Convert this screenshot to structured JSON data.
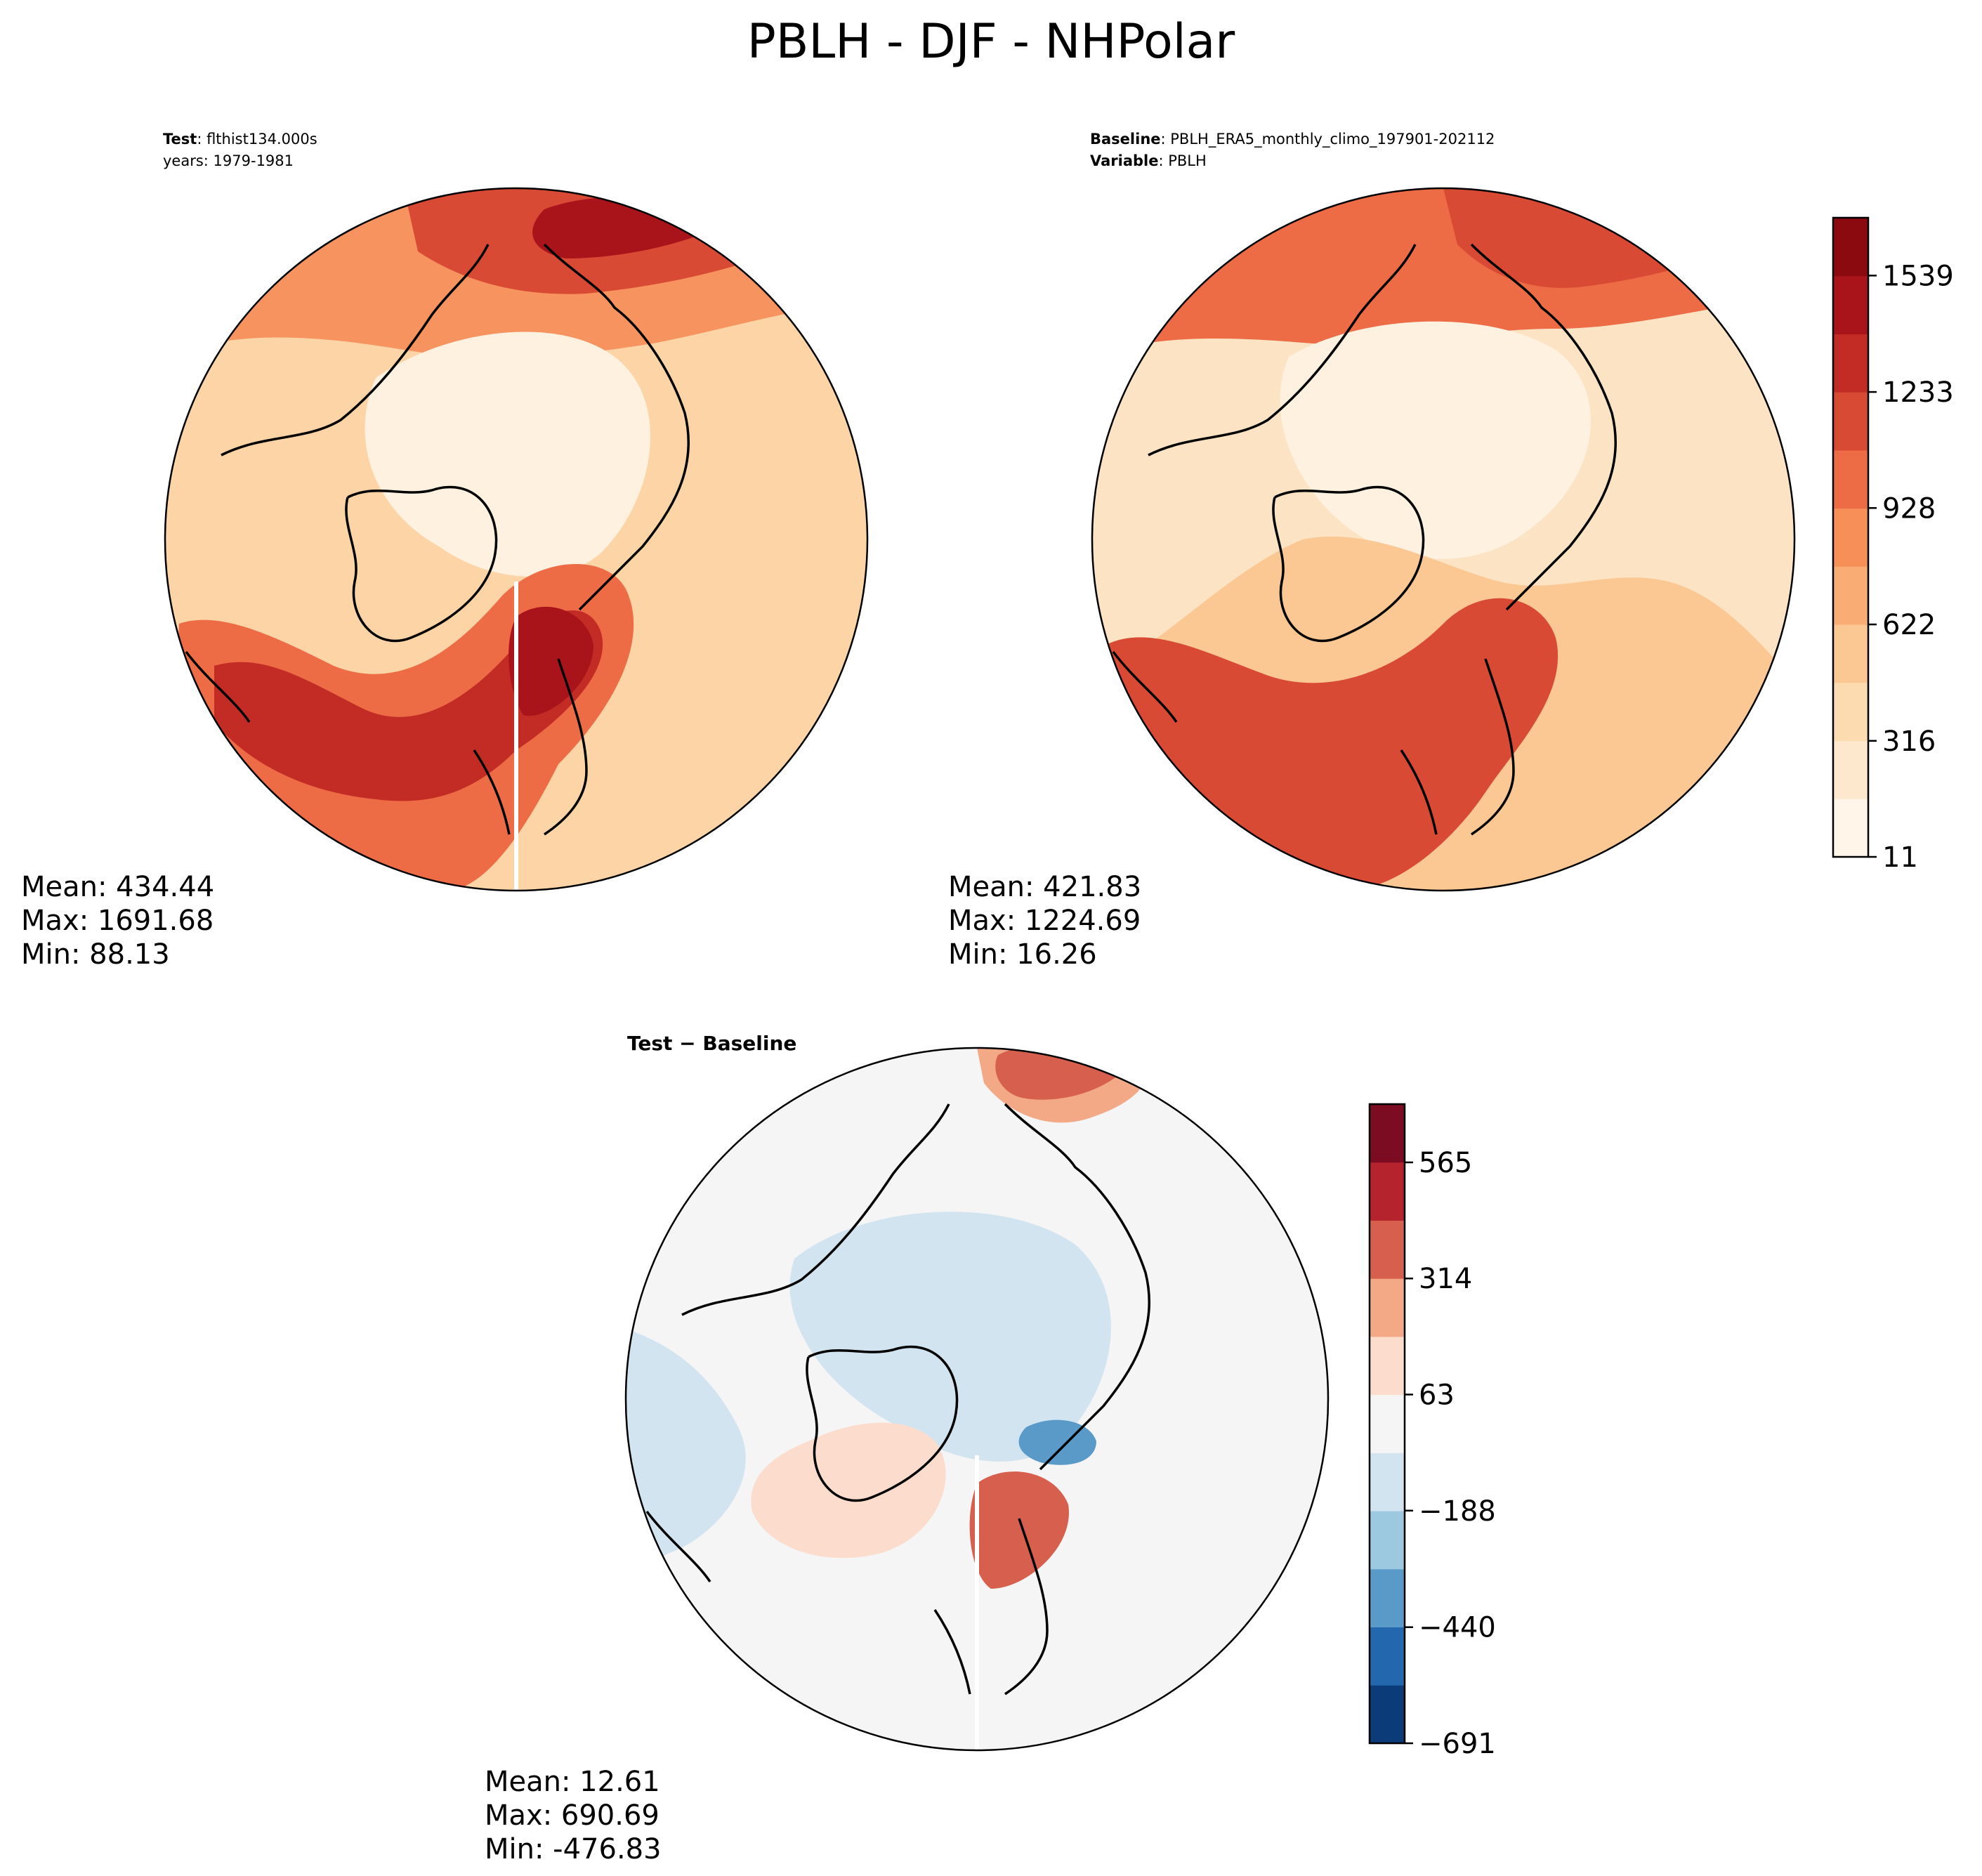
{
  "figure": {
    "title": "PBLH - DJF - NHPolar"
  },
  "panels": {
    "test": {
      "header": [
        {
          "bold": "Test",
          "rest": ": flthist134.000s"
        },
        {
          "bold": "",
          "rest": "years: 1979-1981"
        }
      ],
      "stats": [
        "Mean: 434.44",
        "Max: 1691.68",
        "Min: 88.13"
      ]
    },
    "baseline": {
      "header": [
        {
          "bold": "Baseline",
          "rest": ": PBLH_ERA5_monthly_climo_197901-202112"
        },
        {
          "bold": "Variable",
          "rest": ": PBLH"
        }
      ],
      "stats": [
        "Mean: 421.83",
        "Max: 1224.69",
        "Min: 16.26"
      ]
    },
    "diff": {
      "header": [
        {
          "bold": "Test − Baseline",
          "rest": ""
        }
      ],
      "stats": [
        "Mean: 12.61",
        "Max: 690.69",
        "Min: -476.83"
      ]
    }
  },
  "chart_data": [
    {
      "type": "heatmap",
      "panel": "Test",
      "projection": "north-polar-stereographic",
      "field": "PBLH",
      "mean": 434.44,
      "max": 1691.68,
      "min": 88.13
    },
    {
      "type": "heatmap",
      "panel": "Baseline",
      "projection": "north-polar-stereographic",
      "field": "PBLH",
      "mean": 421.83,
      "max": 1224.69,
      "min": 16.26,
      "colorbar": {
        "colors": [
          "#fff5e8",
          "#fee8cd",
          "#fddbb0",
          "#fbc792",
          "#f9ad74",
          "#f78f59",
          "#ed6c46",
          "#d94a34",
          "#c32c24",
          "#a8141a",
          "#8a0a0f"
        ],
        "levels": [
          11,
          316,
          622,
          928,
          1233,
          1539
        ],
        "range": [
          11,
          1691
        ]
      }
    },
    {
      "type": "heatmap",
      "panel": "Test − Baseline",
      "projection": "north-polar-stereographic",
      "field": "PBLH difference",
      "mean": 12.61,
      "max": 690.69,
      "min": -476.83,
      "colorbar": {
        "colors": [
          "#0b3b78",
          "#2368ad",
          "#5a9ac8",
          "#9cc9e0",
          "#d2e4f0",
          "#f5f5f5",
          "#fbdccd",
          "#f3a886",
          "#d6604d",
          "#b5242c",
          "#7b0c22"
        ],
        "levels": [
          -691,
          -440,
          -188,
          63,
          314,
          565
        ],
        "range": [
          -691,
          691
        ]
      }
    }
  ]
}
